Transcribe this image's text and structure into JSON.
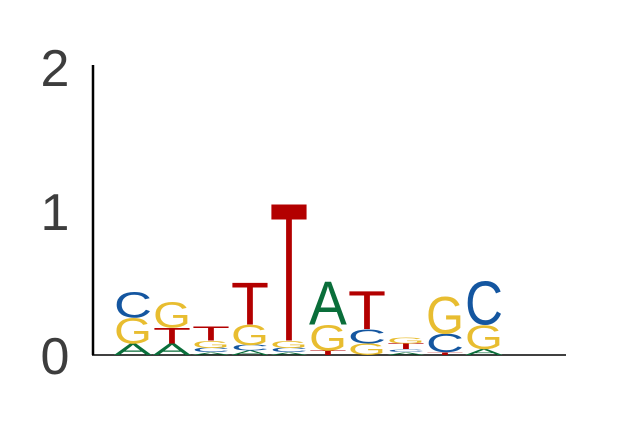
{
  "chart_data": {
    "type": "sequence-logo",
    "title": "",
    "xlabel": "",
    "ylabel": "",
    "ylim": [
      0,
      2
    ],
    "y_ticks": [
      "0",
      "1",
      "2"
    ],
    "grid": false,
    "legend": "none",
    "colors": {
      "A": "#0a6e3a",
      "C": "#1456a0",
      "G": "#e8bd30",
      "T": "#b30000"
    },
    "positions": [
      {
        "index": 1,
        "letters": [
          {
            "base": "A",
            "height": 0.08
          },
          {
            "base": "G",
            "height": 0.18
          },
          {
            "base": "C",
            "height": 0.18
          }
        ]
      },
      {
        "index": 2,
        "letters": [
          {
            "base": "A",
            "height": 0.08
          },
          {
            "base": "T",
            "height": 0.11
          },
          {
            "base": "G",
            "height": 0.18
          }
        ]
      },
      {
        "index": 3,
        "letters": [
          {
            "base": "A",
            "height": 0.02
          },
          {
            "base": "C",
            "height": 0.03
          },
          {
            "base": "G",
            "height": 0.05
          },
          {
            "base": "T",
            "height": 0.1
          }
        ]
      },
      {
        "index": 4,
        "letters": [
          {
            "base": "A",
            "height": 0.03
          },
          {
            "base": "C",
            "height": 0.04
          },
          {
            "base": "G",
            "height": 0.14
          },
          {
            "base": "T",
            "height": 0.3
          }
        ]
      },
      {
        "index": 5,
        "letters": [
          {
            "base": "A",
            "height": 0.02
          },
          {
            "base": "C",
            "height": 0.03
          },
          {
            "base": "G",
            "height": 0.05
          },
          {
            "base": "T",
            "height": 0.98
          }
        ]
      },
      {
        "index": 6,
        "letters": [
          {
            "base": "T",
            "height": 0.03
          },
          {
            "base": "G",
            "height": 0.18
          },
          {
            "base": "A",
            "height": 0.31
          }
        ]
      },
      {
        "index": 7,
        "letters": [
          {
            "base": "G",
            "height": 0.08
          },
          {
            "base": "C",
            "height": 0.1
          },
          {
            "base": "T",
            "height": 0.27
          }
        ]
      },
      {
        "index": 8,
        "letters": [
          {
            "base": "A",
            "height": 0.02
          },
          {
            "base": "C",
            "height": 0.02
          },
          {
            "base": "T",
            "height": 0.04
          },
          {
            "base": "G",
            "height": 0.04
          }
        ]
      },
      {
        "index": 9,
        "letters": [
          {
            "base": "T",
            "height": 0.02
          },
          {
            "base": "C",
            "height": 0.13
          },
          {
            "base": "G",
            "height": 0.26
          }
        ]
      },
      {
        "index": 10,
        "letters": [
          {
            "base": "A",
            "height": 0.04
          },
          {
            "base": "G",
            "height": 0.17
          },
          {
            "base": "C",
            "height": 0.31
          }
        ]
      }
    ]
  }
}
